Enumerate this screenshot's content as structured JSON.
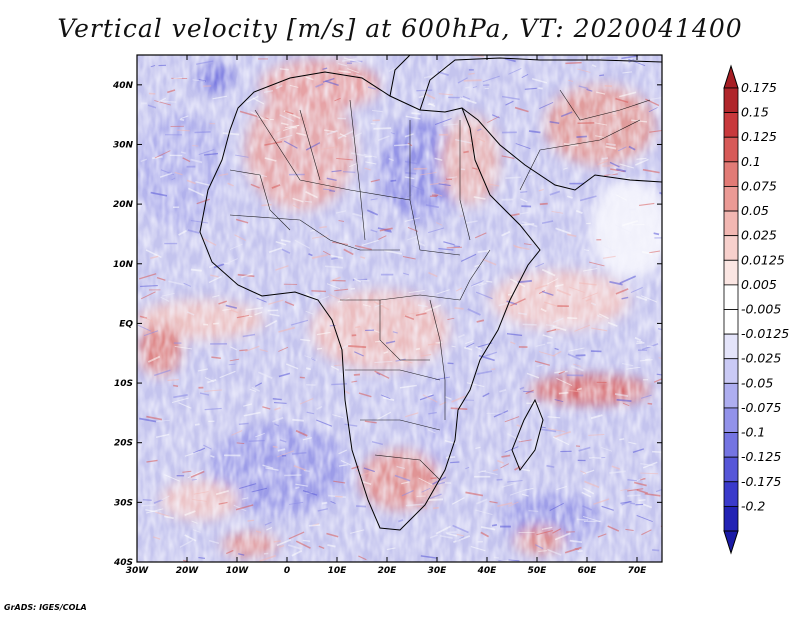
{
  "title": "Vertical velocity [m/s] at 600hPa, VT: 2020041400",
  "credit": "GrADS: IGES/COLA",
  "map": {
    "lon_range": [
      -30,
      75
    ],
    "lat_range": [
      -40,
      45
    ],
    "lon_ticks": [
      {
        "value": -30,
        "label": "30W"
      },
      {
        "value": -20,
        "label": "20W"
      },
      {
        "value": -10,
        "label": "10W"
      },
      {
        "value": 0,
        "label": "0"
      },
      {
        "value": 10,
        "label": "10E"
      },
      {
        "value": 20,
        "label": "20E"
      },
      {
        "value": 30,
        "label": "30E"
      },
      {
        "value": 40,
        "label": "40E"
      },
      {
        "value": 50,
        "label": "50E"
      },
      {
        "value": 60,
        "label": "60E"
      },
      {
        "value": 70,
        "label": "70E"
      }
    ],
    "lat_ticks": [
      {
        "value": 40,
        "label": "40N"
      },
      {
        "value": 30,
        "label": "30N"
      },
      {
        "value": 20,
        "label": "20N"
      },
      {
        "value": 10,
        "label": "10N"
      },
      {
        "value": 0,
        "label": "EQ"
      },
      {
        "value": -10,
        "label": "10S"
      },
      {
        "value": -20,
        "label": "20S"
      },
      {
        "value": -30,
        "label": "30S"
      },
      {
        "value": -40,
        "label": "40S"
      }
    ]
  },
  "colorbar": {
    "levels": [
      {
        "label": "0.175",
        "color": "#b0262b"
      },
      {
        "label": "0.15",
        "color": "#c8393c"
      },
      {
        "label": "0.125",
        "color": "#d75a58"
      },
      {
        "label": "0.1",
        "color": "#e27b76"
      },
      {
        "label": "0.075",
        "color": "#eb9a95"
      },
      {
        "label": "0.05",
        "color": "#f2b7b2"
      },
      {
        "label": "0.025",
        "color": "#f7d0cc"
      },
      {
        "label": "0.0125",
        "color": "#fbe6e3"
      },
      {
        "label": "0.005",
        "color": "#ffffff"
      },
      {
        "label": "-0.005",
        "color": "#ffffff"
      },
      {
        "label": "-0.0125",
        "color": "#e4e4fa"
      },
      {
        "label": "-0.025",
        "color": "#cacaf5"
      },
      {
        "label": "-0.05",
        "color": "#aeaef0"
      },
      {
        "label": "-0.075",
        "color": "#9292ea"
      },
      {
        "label": "-0.1",
        "color": "#7474e2"
      },
      {
        "label": "-0.125",
        "color": "#5656d8"
      },
      {
        "label": "-0.175",
        "color": "#3a3acb"
      },
      {
        "label": "-0.2",
        "color": "#2222b4"
      }
    ],
    "top_color": "#a61e24",
    "bottom_color": "#1a1aa6"
  }
}
